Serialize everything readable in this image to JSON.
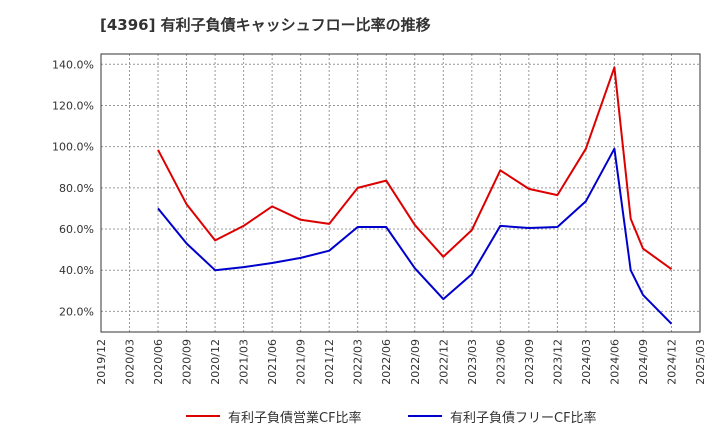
{
  "chart_data": {
    "type": "line",
    "title": "[4396]  有利子負債キャッシュフロー比率の推移",
    "xlabel": "",
    "ylabel": "",
    "ylim": [
      10,
      145
    ],
    "y_ticks": [
      "20.0%",
      "40.0%",
      "60.0%",
      "80.0%",
      "100.0%",
      "120.0%",
      "140.0%"
    ],
    "y_tick_values": [
      20,
      40,
      60,
      80,
      100,
      120,
      140
    ],
    "x_ticks": [
      "2019/12",
      "2020/03",
      "2020/06",
      "2020/09",
      "2020/12",
      "2021/03",
      "2021/06",
      "2021/09",
      "2021/12",
      "2022/03",
      "2022/06",
      "2022/09",
      "2022/12",
      "2023/03",
      "2023/06",
      "2023/09",
      "2023/12",
      "2024/03",
      "2024/06",
      "2024/09",
      "2024/12",
      "2025/03"
    ],
    "grid": true,
    "legend_position": "bottom",
    "x": [
      "2020/06",
      "2020/09",
      "2020/12",
      "2021/03",
      "2021/06",
      "2021/09",
      "2021/12",
      "2022/03",
      "2022/06",
      "2022/09",
      "2022/12",
      "2023/03",
      "2023/06",
      "2023/09",
      "2023/12",
      "2024/03",
      "2024/06",
      "2024/09",
      "2024/12"
    ],
    "series": [
      {
        "name": "有利子負債営業CF比率",
        "color": "#dd0000",
        "values": [
          98.5,
          72,
          54.5,
          61.5,
          71,
          64.5,
          62.5,
          80,
          83.5,
          62,
          46.5,
          59.5,
          88.5,
          79.5,
          76.5,
          99,
          138.5,
          50.5,
          40.5
        ],
        "extra_points": [
          [
            "2024/09",
            65
          ]
        ]
      },
      {
        "name": "有利子負債フリーCF比率",
        "color": "#0000cc",
        "values": [
          70,
          53,
          40,
          41.5,
          43.5,
          46,
          49.5,
          61,
          61,
          41,
          26,
          38,
          61.5,
          60.5,
          61,
          73.5,
          99,
          28,
          14
        ],
        "extra_points": [
          [
            "2024/09",
            40
          ]
        ]
      }
    ]
  }
}
